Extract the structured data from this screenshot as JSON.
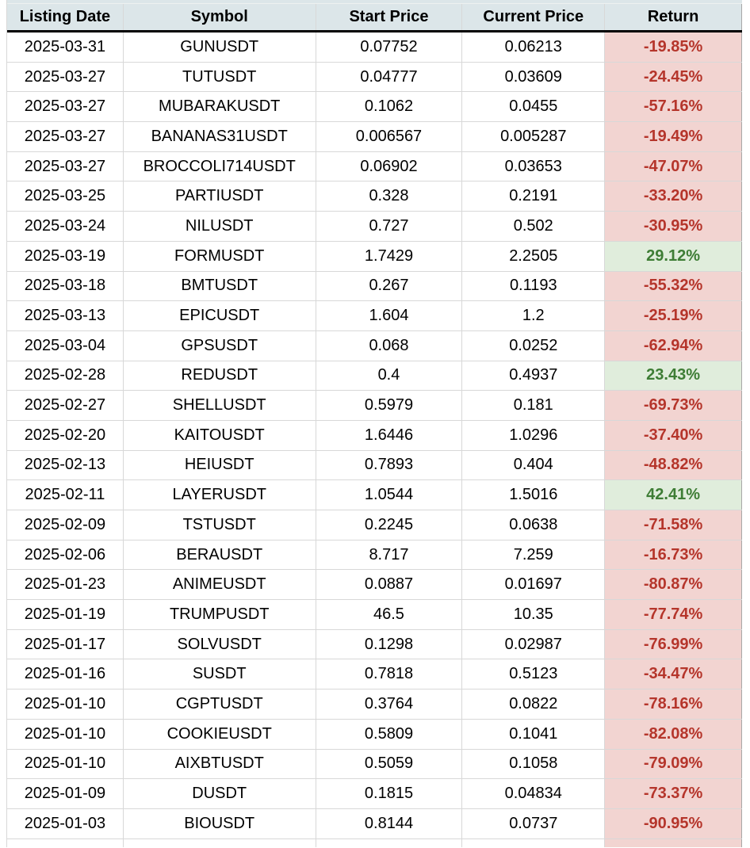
{
  "table": {
    "columns": {
      "listing_date": "Listing Date",
      "symbol": "Symbol",
      "start_price": "Start Price",
      "current_price": "Current Price",
      "return": "Return"
    },
    "rows": [
      {
        "date": "2025-03-31",
        "symbol": "GUNUSDT",
        "start": "0.07752",
        "current": "0.06213",
        "return": "-19.85%",
        "positive": false
      },
      {
        "date": "2025-03-27",
        "symbol": "TUTUSDT",
        "start": "0.04777",
        "current": "0.03609",
        "return": "-24.45%",
        "positive": false
      },
      {
        "date": "2025-03-27",
        "symbol": "MUBARAKUSDT",
        "start": "0.1062",
        "current": "0.0455",
        "return": "-57.16%",
        "positive": false
      },
      {
        "date": "2025-03-27",
        "symbol": "BANANAS31USDT",
        "start": "0.006567",
        "current": "0.005287",
        "return": "-19.49%",
        "positive": false
      },
      {
        "date": "2025-03-27",
        "symbol": "BROCCOLI714USDT",
        "start": "0.06902",
        "current": "0.03653",
        "return": "-47.07%",
        "positive": false
      },
      {
        "date": "2025-03-25",
        "symbol": "PARTIUSDT",
        "start": "0.328",
        "current": "0.2191",
        "return": "-33.20%",
        "positive": false
      },
      {
        "date": "2025-03-24",
        "symbol": "NILUSDT",
        "start": "0.727",
        "current": "0.502",
        "return": "-30.95%",
        "positive": false
      },
      {
        "date": "2025-03-19",
        "symbol": "FORMUSDT",
        "start": "1.7429",
        "current": "2.2505",
        "return": "29.12%",
        "positive": true
      },
      {
        "date": "2025-03-18",
        "symbol": "BMTUSDT",
        "start": "0.267",
        "current": "0.1193",
        "return": "-55.32%",
        "positive": false
      },
      {
        "date": "2025-03-13",
        "symbol": "EPICUSDT",
        "start": "1.604",
        "current": "1.2",
        "return": "-25.19%",
        "positive": false
      },
      {
        "date": "2025-03-04",
        "symbol": "GPSUSDT",
        "start": "0.068",
        "current": "0.0252",
        "return": "-62.94%",
        "positive": false
      },
      {
        "date": "2025-02-28",
        "symbol": "REDUSDT",
        "start": "0.4",
        "current": "0.4937",
        "return": "23.43%",
        "positive": true
      },
      {
        "date": "2025-02-27",
        "symbol": "SHELLUSDT",
        "start": "0.5979",
        "current": "0.181",
        "return": "-69.73%",
        "positive": false
      },
      {
        "date": "2025-02-20",
        "symbol": "KAITOUSDT",
        "start": "1.6446",
        "current": "1.0296",
        "return": "-37.40%",
        "positive": false
      },
      {
        "date": "2025-02-13",
        "symbol": "HEIUSDT",
        "start": "0.7893",
        "current": "0.404",
        "return": "-48.82%",
        "positive": false
      },
      {
        "date": "2025-02-11",
        "symbol": "LAYERUSDT",
        "start": "1.0544",
        "current": "1.5016",
        "return": "42.41%",
        "positive": true
      },
      {
        "date": "2025-02-09",
        "symbol": "TSTUSDT",
        "start": "0.2245",
        "current": "0.0638",
        "return": "-71.58%",
        "positive": false
      },
      {
        "date": "2025-02-06",
        "symbol": "BERAUSDT",
        "start": "8.717",
        "current": "7.259",
        "return": "-16.73%",
        "positive": false
      },
      {
        "date": "2025-01-23",
        "symbol": "ANIMEUSDT",
        "start": "0.0887",
        "current": "0.01697",
        "return": "-80.87%",
        "positive": false
      },
      {
        "date": "2025-01-19",
        "symbol": "TRUMPUSDT",
        "start": "46.5",
        "current": "10.35",
        "return": "-77.74%",
        "positive": false
      },
      {
        "date": "2025-01-17",
        "symbol": "SOLVUSDT",
        "start": "0.1298",
        "current": "0.02987",
        "return": "-76.99%",
        "positive": false
      },
      {
        "date": "2025-01-16",
        "symbol": "SUSDT",
        "start": "0.7818",
        "current": "0.5123",
        "return": "-34.47%",
        "positive": false
      },
      {
        "date": "2025-01-10",
        "symbol": "CGPTUSDT",
        "start": "0.3764",
        "current": "0.0822",
        "return": "-78.16%",
        "positive": false
      },
      {
        "date": "2025-01-10",
        "symbol": "COOKIEUSDT",
        "start": "0.5809",
        "current": "0.1041",
        "return": "-82.08%",
        "positive": false
      },
      {
        "date": "2025-01-10",
        "symbol": "AIXBTUSDT",
        "start": "0.5059",
        "current": "0.1058",
        "return": "-79.09%",
        "positive": false
      },
      {
        "date": "2025-01-09",
        "symbol": "DUSDT",
        "start": "0.1815",
        "current": "0.04834",
        "return": "-73.37%",
        "positive": false
      },
      {
        "date": "2025-01-03",
        "symbol": "BIOUSDT",
        "start": "0.8144",
        "current": "0.0737",
        "return": "-90.95%",
        "positive": false
      }
    ]
  },
  "colors": {
    "header_bg": "#dce6e9",
    "grid_line": "#d8d8d8",
    "negative_bg": "#f2d4d1",
    "negative_text": "#b5352b",
    "positive_bg": "#e0eddc",
    "positive_text": "#3e7d35"
  },
  "chart_data": {
    "type": "table",
    "title": "",
    "columns": [
      "Listing Date",
      "Symbol",
      "Start Price",
      "Current Price",
      "Return"
    ],
    "rows": [
      [
        "2025-03-31",
        "GUNUSDT",
        0.07752,
        0.06213,
        "-19.85%"
      ],
      [
        "2025-03-27",
        "TUTUSDT",
        0.04777,
        0.03609,
        "-24.45%"
      ],
      [
        "2025-03-27",
        "MUBARAKUSDT",
        0.1062,
        0.0455,
        "-57.16%"
      ],
      [
        "2025-03-27",
        "BANANAS31USDT",
        0.006567,
        0.005287,
        "-19.49%"
      ],
      [
        "2025-03-27",
        "BROCCOLI714USDT",
        0.06902,
        0.03653,
        "-47.07%"
      ],
      [
        "2025-03-25",
        "PARTIUSDT",
        0.328,
        0.2191,
        "-33.20%"
      ],
      [
        "2025-03-24",
        "NILUSDT",
        0.727,
        0.502,
        "-30.95%"
      ],
      [
        "2025-03-19",
        "FORMUSDT",
        1.7429,
        2.2505,
        "29.12%"
      ],
      [
        "2025-03-18",
        "BMTUSDT",
        0.267,
        0.1193,
        "-55.32%"
      ],
      [
        "2025-03-13",
        "EPICUSDT",
        1.604,
        1.2,
        "-25.19%"
      ],
      [
        "2025-03-04",
        "GPSUSDT",
        0.068,
        0.0252,
        "-62.94%"
      ],
      [
        "2025-02-28",
        "REDUSDT",
        0.4,
        0.4937,
        "23.43%"
      ],
      [
        "2025-02-27",
        "SHELLUSDT",
        0.5979,
        0.181,
        "-69.73%"
      ],
      [
        "2025-02-20",
        "KAITOUSDT",
        1.6446,
        1.0296,
        "-37.40%"
      ],
      [
        "2025-02-13",
        "HEIUSDT",
        0.7893,
        0.404,
        "-48.82%"
      ],
      [
        "2025-02-11",
        "LAYERUSDT",
        1.0544,
        1.5016,
        "42.41%"
      ],
      [
        "2025-02-09",
        "TSTUSDT",
        0.2245,
        0.0638,
        "-71.58%"
      ],
      [
        "2025-02-06",
        "BERAUSDT",
        8.717,
        7.259,
        "-16.73%"
      ],
      [
        "2025-01-23",
        "ANIMEUSDT",
        0.0887,
        0.01697,
        "-80.87%"
      ],
      [
        "2025-01-19",
        "TRUMPUSDT",
        46.5,
        10.35,
        "-77.74%"
      ],
      [
        "2025-01-17",
        "SOLVUSDT",
        0.1298,
        0.02987,
        "-76.99%"
      ],
      [
        "2025-01-16",
        "SUSDT",
        0.7818,
        0.5123,
        "-34.47%"
      ],
      [
        "2025-01-10",
        "CGPTUSDT",
        0.3764,
        0.0822,
        "-78.16%"
      ],
      [
        "2025-01-10",
        "COOKIEUSDT",
        0.5809,
        0.1041,
        "-82.08%"
      ],
      [
        "2025-01-10",
        "AIXBTUSDT",
        0.5059,
        0.1058,
        "-79.09%"
      ],
      [
        "2025-01-09",
        "DUSDT",
        0.1815,
        0.04834,
        "-73.37%"
      ],
      [
        "2025-01-03",
        "BIOUSDT",
        0.8144,
        0.0737,
        "-90.95%"
      ]
    ],
    "notes": "Spreadsheet-style table with conditional formatting: negative returns have light-red background with dark-red bold text; positive returns have light-green background with dark-green bold text."
  }
}
